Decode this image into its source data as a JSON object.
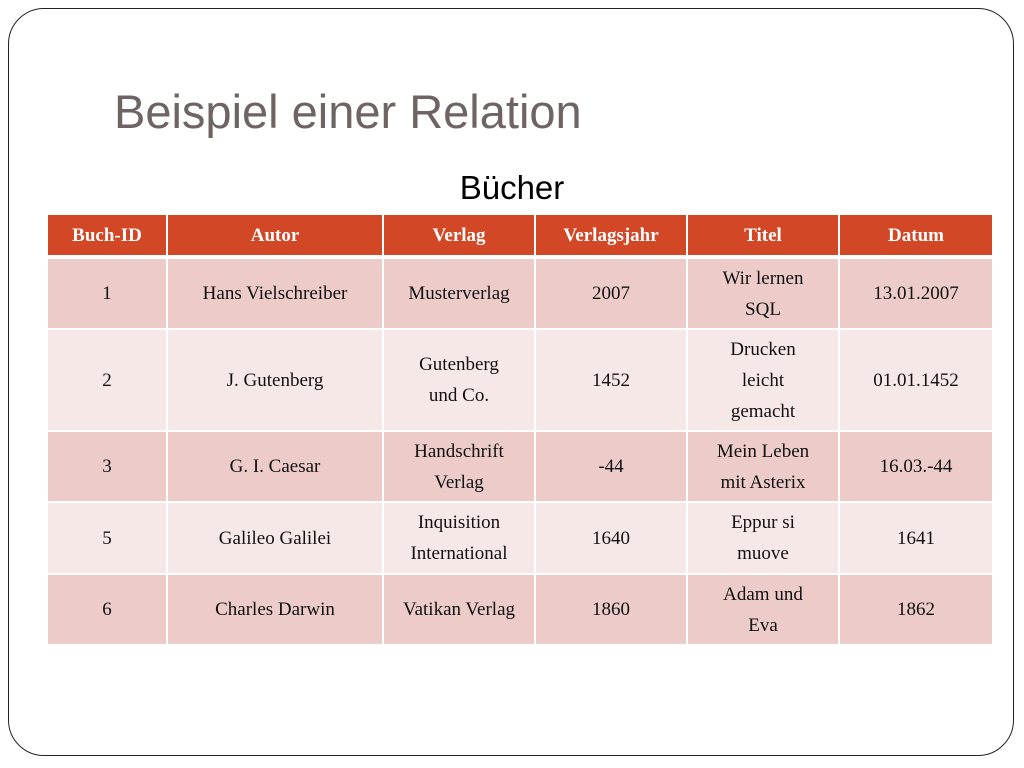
{
  "slide": {
    "title": "Beispiel einer Relation",
    "table_caption": "Bücher"
  },
  "table": {
    "headers": [
      "Buch-ID",
      "Autor",
      "Verlag",
      "Verlagsjahr",
      "Titel",
      "Datum"
    ],
    "rows": [
      [
        "1",
        "Hans Vielschreiber",
        "Musterverlag",
        "2007",
        "Wir lernen\nSQL",
        "13.01.2007"
      ],
      [
        "2",
        "J. Gutenberg",
        "Gutenberg\nund Co.",
        "1452",
        "Drucken\nleicht\ngemacht",
        "01.01.1452"
      ],
      [
        "3",
        "G. I. Caesar",
        "Handschrift\nVerlag",
        "-44",
        "Mein Leben\nmit Asterix",
        "16.03.-44"
      ],
      [
        "5",
        "Galileo Galilei",
        "Inquisition\nInternational",
        "1640",
        "Eppur si\nmuove",
        "1641"
      ],
      [
        "6",
        "Charles Darwin",
        "Vatikan Verlag",
        "1860",
        "Adam und\nEva",
        "1862"
      ]
    ]
  },
  "colors": {
    "header_background": "#d24726",
    "row_odd": "#eccbc9",
    "row_even": "#f6e8e7",
    "title_text": "#6e6464"
  }
}
